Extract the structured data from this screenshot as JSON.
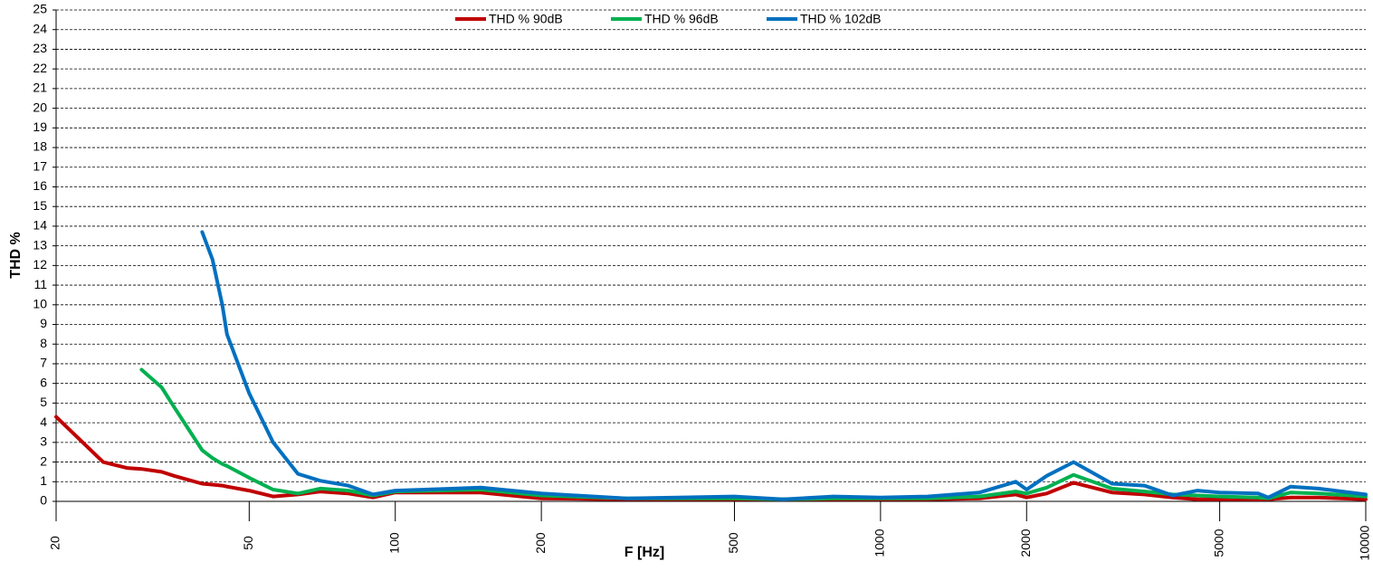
{
  "chart_data": {
    "type": "line",
    "x_label": "F [Hz]",
    "y_label": "THD %",
    "x_scale": "log",
    "xlim": [
      20,
      10000
    ],
    "xticks": [
      20,
      50,
      100,
      200,
      500,
      1000,
      2000,
      5000,
      10000
    ],
    "ylim": [
      0,
      25
    ],
    "yticks": [
      0,
      1,
      2,
      3,
      4,
      5,
      6,
      7,
      8,
      9,
      10,
      11,
      12,
      13,
      14,
      15,
      16,
      17,
      18,
      19,
      20,
      21,
      22,
      23,
      24,
      25
    ],
    "grid": true,
    "legend": "top",
    "x": [
      20,
      25,
      28,
      30,
      33,
      35,
      40,
      42,
      44,
      45,
      50,
      56,
      63,
      70,
      80,
      90,
      100,
      150,
      200,
      300,
      500,
      630,
      800,
      1000,
      1250,
      1600,
      1900,
      2000,
      2200,
      2500,
      3000,
      3500,
      4000,
      4500,
      5000,
      6000,
      6300,
      7000,
      8000,
      10000
    ],
    "series": [
      {
        "name": "THD % 90dB",
        "color": "#c00000",
        "values": [
          4.3,
          2.0,
          1.7,
          1.65,
          1.5,
          1.3,
          0.9,
          0.85,
          0.8,
          0.75,
          0.55,
          0.25,
          0.35,
          0.5,
          0.4,
          0.2,
          0.45,
          0.45,
          0.15,
          0.1,
          0.1,
          0.1,
          0.1,
          0.1,
          0.1,
          0.15,
          0.35,
          0.2,
          0.4,
          0.95,
          0.45,
          0.35,
          0.2,
          0.1,
          0.1,
          0.1,
          0.1,
          0.2,
          0.2,
          0.1
        ]
      },
      {
        "name": "THD % 96dB",
        "color": "#00b050",
        "values": [
          null,
          null,
          null,
          6.7,
          5.8,
          4.8,
          2.6,
          2.2,
          1.9,
          1.8,
          1.2,
          0.6,
          0.4,
          0.65,
          0.55,
          0.3,
          0.5,
          0.6,
          0.3,
          0.15,
          0.15,
          0.1,
          0.15,
          0.15,
          0.15,
          0.25,
          0.5,
          0.4,
          0.7,
          1.35,
          0.65,
          0.5,
          0.35,
          0.3,
          0.25,
          0.2,
          0.15,
          0.45,
          0.4,
          0.25
        ]
      },
      {
        "name": "THD % 102dB",
        "color": "#0070c0",
        "values": [
          null,
          null,
          null,
          null,
          null,
          null,
          13.7,
          12.3,
          10,
          8.5,
          5.5,
          3,
          1.4,
          1.05,
          0.8,
          0.35,
          0.55,
          0.7,
          0.4,
          0.15,
          0.25,
          0.1,
          0.25,
          0.2,
          0.25,
          0.45,
          1.0,
          0.6,
          1.3,
          2.0,
          0.9,
          0.8,
          0.3,
          0.55,
          0.45,
          0.4,
          0.2,
          0.75,
          0.65,
          0.35
        ]
      }
    ]
  }
}
